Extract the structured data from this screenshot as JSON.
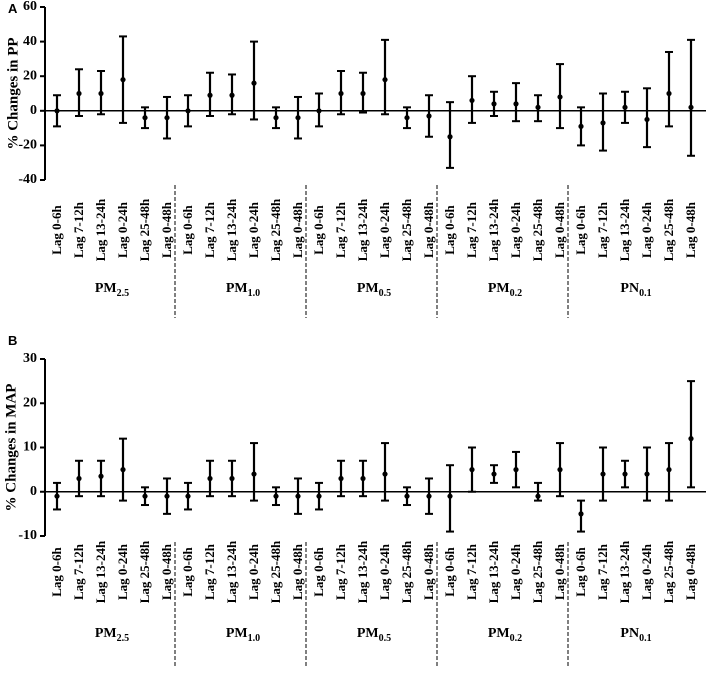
{
  "chart_data": [
    {
      "panel": "A",
      "type": "errorbar",
      "ylabel": "% Changes in PP",
      "ylim": [
        -40,
        60
      ],
      "yticks": [
        -40,
        -20,
        0,
        20,
        40,
        60
      ],
      "lag_labels": [
        "Lag 0-6h",
        "Lag 7-12h",
        "Lag 13-24h",
        "Lag 0-24h",
        "Lag 25-48h",
        "Lag 0-48h"
      ],
      "groups": [
        {
          "main": "PM",
          "sub": "2.5",
          "estimates": [
            0,
            10,
            10,
            18,
            -4,
            -4
          ],
          "lower": [
            -9,
            -3,
            -2,
            -7,
            -10,
            -16
          ],
          "upper": [
            9,
            24,
            23,
            43,
            2,
            8
          ]
        },
        {
          "main": "PM",
          "sub": "1.0",
          "estimates": [
            0,
            9,
            9,
            16,
            -4,
            -4
          ],
          "lower": [
            -9,
            -3,
            -2,
            -5,
            -10,
            -16
          ],
          "upper": [
            9,
            22,
            21,
            40,
            2,
            8
          ]
        },
        {
          "main": "PM",
          "sub": "0.5",
          "estimates": [
            0,
            10,
            10,
            18,
            -4,
            -3
          ],
          "lower": [
            -9,
            -2,
            -1,
            -2,
            -10,
            -15
          ],
          "upper": [
            10,
            23,
            22,
            41,
            2,
            9
          ]
        },
        {
          "main": "PM",
          "sub": "0.2",
          "estimates": [
            -15,
            6,
            4,
            4,
            2,
            8
          ],
          "lower": [
            -33,
            -7,
            -3,
            -6,
            -6,
            -10
          ],
          "upper": [
            5,
            20,
            11,
            16,
            9,
            27
          ]
        },
        {
          "main": "PN",
          "sub": "0.1",
          "estimates": [
            -9,
            -7,
            2,
            -5,
            10,
            2
          ],
          "lower": [
            -20,
            -23,
            -7,
            -21,
            -9,
            -26
          ],
          "upper": [
            2,
            10,
            11,
            13,
            34,
            41
          ]
        }
      ]
    },
    {
      "panel": "B",
      "type": "errorbar",
      "ylabel": "% Changes in MAP",
      "ylim": [
        -10,
        30
      ],
      "yticks": [
        -10,
        0,
        10,
        20,
        30
      ],
      "lag_labels": [
        "Lag 0-6h",
        "Lag 7-12h",
        "Lag 13-24h",
        "Lag 0-24h",
        "Lag 25-48h",
        "Lag 0-48h"
      ],
      "groups": [
        {
          "main": "PM",
          "sub": "2.5",
          "estimates": [
            -1,
            3,
            3.5,
            5,
            -1,
            -1
          ],
          "lower": [
            -4,
            -1,
            -1,
            -2,
            -3,
            -5
          ],
          "upper": [
            2,
            7,
            7,
            12,
            1,
            3
          ]
        },
        {
          "main": "PM",
          "sub": "1.0",
          "estimates": [
            -1,
            3,
            3,
            4,
            -1,
            -1
          ],
          "lower": [
            -4,
            -1,
            -1,
            -2,
            -3,
            -5
          ],
          "upper": [
            2,
            7,
            7,
            11,
            1,
            3
          ]
        },
        {
          "main": "PM",
          "sub": "0.5",
          "estimates": [
            -1,
            3,
            3,
            4,
            -1,
            -1
          ],
          "lower": [
            -4,
            -1,
            -1,
            -2,
            -3,
            -5
          ],
          "upper": [
            2,
            7,
            7,
            11,
            1,
            3
          ]
        },
        {
          "main": "PM",
          "sub": "0.2",
          "estimates": [
            -1,
            5,
            4,
            5,
            -1,
            5
          ],
          "lower": [
            -9,
            0,
            2,
            1,
            -2,
            -1
          ],
          "upper": [
            6,
            10,
            6,
            9,
            2,
            11
          ]
        },
        {
          "main": "PN",
          "sub": "0.1",
          "estimates": [
            -5,
            4,
            4,
            4,
            5,
            12
          ],
          "lower": [
            -9,
            -2,
            1,
            -2,
            -2,
            1
          ],
          "upper": [
            -2,
            10,
            7,
            10,
            11,
            25
          ]
        }
      ]
    }
  ]
}
